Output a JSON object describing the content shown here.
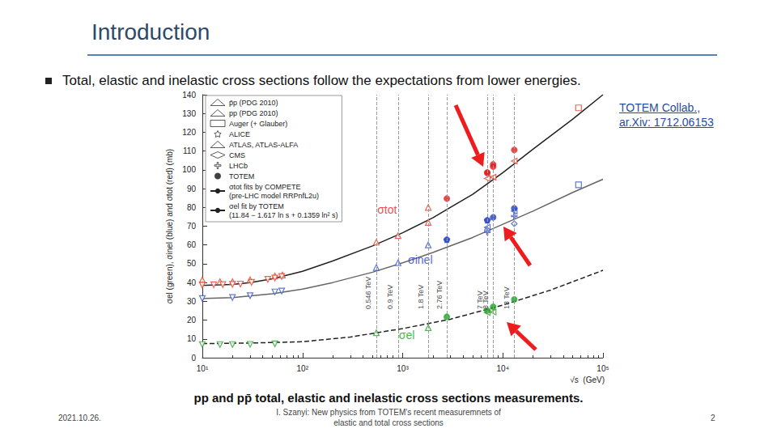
{
  "slide": {
    "title": "Introduction",
    "bullet": "Total, elastic and inelastic cross sections follow the expectations from lower energies.",
    "reference": [
      "TOTEM Collab.,",
      "ar.Xiv: 1712.06153"
    ],
    "footer": {
      "date": "2021.10.26.",
      "author": [
        "I. Szanyi: New physics from TOTEM's recent measuremnets of",
        "elastic and total cross sections"
      ],
      "page": "2"
    }
  },
  "chart_data": {
    "type": "scatter",
    "title": "pp and pp̄ total, elastic and inelastic cross sections measurements.",
    "xlabel": "√s  (GeV)",
    "ylabel": "σel (green), σinel (blue) and σtot (red) (mb)",
    "log": "x",
    "grid": false,
    "legend": "upper left",
    "xlim": [
      10,
      100000
    ],
    "xticks": [
      {
        "value": 10,
        "label": "10¹"
      },
      {
        "value": 100,
        "label": "10²"
      },
      {
        "value": 1000,
        "label": "10³"
      },
      {
        "value": 10000,
        "label": "10⁴"
      },
      {
        "value": 100000,
        "label": "10⁵"
      }
    ],
    "ylim": [
      0,
      140
    ],
    "yticks": [
      0,
      10,
      20,
      30,
      40,
      50,
      60,
      70,
      80,
      90,
      100,
      110,
      120,
      130,
      140
    ],
    "series": [
      {
        "name": "p̄p (PDG 2010)",
        "color": "#e8412c",
        "marker": "triangle-up-open",
        "type": "scatter",
        "x": [
          10,
          15,
          20,
          30,
          53,
          63,
          546,
          900,
          1800,
          1800
        ],
        "values": [
          41.5,
          40.5,
          40.5,
          41.5,
          43.5,
          44,
          61.5,
          65,
          72,
          80
        ]
      },
      {
        "name": "p̄p (PDG 2010)",
        "color": "#3a56c9",
        "marker": "triangle-up-open",
        "type": "scatter",
        "x": [
          546,
          900,
          1800
        ],
        "values": [
          48,
          50.5,
          60
        ]
      },
      {
        "name": "p̄p (PDG 2010)",
        "color": "#2ca02c",
        "marker": "triangle-up-open",
        "type": "scatter",
        "x": [
          546,
          1800
        ],
        "values": [
          13.3,
          16
        ]
      },
      {
        "name": "pp (PDG 2010)",
        "color": "#e8412c",
        "marker": "triangle-down-open",
        "type": "scatter",
        "x": [
          10,
          13,
          16,
          20,
          24,
          31,
          45,
          53,
          62
        ],
        "values": [
          38.6,
          38.8,
          38.9,
          39,
          39.2,
          40.1,
          41.7,
          42.4,
          43.2
        ]
      },
      {
        "name": "pp (PDG 2010)",
        "color": "#3a56c9",
        "marker": "triangle-down-open",
        "type": "scatter",
        "x": [
          10,
          20,
          30,
          53,
          62
        ],
        "values": [
          31.5,
          32,
          33,
          35,
          35.5
        ]
      },
      {
        "name": "pp (PDG 2010)",
        "color": "#2ca02c",
        "marker": "triangle-down-open",
        "type": "scatter",
        "x": [
          10,
          15,
          20,
          30,
          53
        ],
        "values": [
          7,
          7,
          7,
          7.1,
          7.4
        ]
      },
      {
        "name": "Auger (+ Glauber)",
        "color": "#e8412c",
        "marker": "square-open",
        "type": "scatter",
        "x": [
          57000
        ],
        "values": [
          133
        ]
      },
      {
        "name": "Auger (+ Glauber)",
        "color": "#3a56c9",
        "marker": "square-open",
        "type": "scatter",
        "x": [
          57000
        ],
        "values": [
          92
        ]
      },
      {
        "name": "ALICE",
        "color": "#3a56c9",
        "marker": "star-open",
        "type": "scatter",
        "x": [
          2760,
          7000
        ],
        "values": [
          62.8,
          73.2
        ]
      },
      {
        "name": "ATLAS, ATLAS-ALFA",
        "color": "#e8412c",
        "marker": "triangle-left-open",
        "type": "scatter",
        "x": [
          7000,
          8000,
          13000
        ],
        "values": [
          95.4,
          96.1,
          104.7
        ]
      },
      {
        "name": "ATLAS, ATLAS-ALFA",
        "color": "#3a56c9",
        "marker": "triangle-left-open",
        "type": "scatter",
        "x": [
          7000,
          13000
        ],
        "values": [
          69.4,
          78.1
        ]
      },
      {
        "name": "ATLAS, ATLAS-ALFA",
        "color": "#2ca02c",
        "marker": "triangle-left-open",
        "type": "scatter",
        "x": [
          7000,
          8000
        ],
        "values": [
          24,
          24.3
        ]
      },
      {
        "name": "CMS",
        "color": "#3a56c9",
        "marker": "diamond-open",
        "type": "scatter",
        "x": [
          7000,
          13000
        ],
        "values": [
          68,
          71.3
        ]
      },
      {
        "name": "LHCb",
        "color": "#3a56c9",
        "marker": "cross-open",
        "type": "scatter",
        "x": [
          7000,
          13000
        ],
        "values": [
          66.9,
          75.4
        ]
      },
      {
        "name": "TOTEM",
        "color": "#e31a1c",
        "marker": "circle",
        "type": "scatter",
        "x": [
          2760,
          7000,
          7000,
          8000,
          8000,
          13000
        ],
        "values": [
          84.7,
          98.3,
          98.6,
          101.7,
          102.9,
          110.6
        ]
      },
      {
        "name": "TOTEM",
        "color": "#1f3fc4",
        "marker": "circle",
        "type": "scatter",
        "x": [
          2760,
          7000,
          8000,
          13000
        ],
        "values": [
          62.8,
          73.1,
          74.7,
          79.5
        ]
      },
      {
        "name": "TOTEM",
        "color": "#16a31b",
        "marker": "circle",
        "type": "scatter",
        "x": [
          2760,
          7000,
          8000,
          13000
        ],
        "values": [
          21.8,
          25.1,
          27.1,
          31
        ]
      },
      {
        "name": "σtot fits by COMPETE\n(pre-LHC model RRPnfL2u)",
        "color": "#222222",
        "type": "line",
        "line_style": "solid",
        "x": [
          10,
          20,
          30,
          50,
          100,
          200,
          500,
          1000,
          2000,
          5000,
          10000,
          20000,
          50000,
          100000
        ],
        "values": [
          38.5,
          39,
          40,
          42,
          46,
          51.5,
          59.5,
          66.5,
          74.5,
          87,
          98.5,
          111,
          127,
          140
        ]
      },
      {
        "name": "σtot fits by COMPETE\n(pre-LHC model RRPnfL2u)",
        "color": "#666666",
        "type": "line",
        "line_style": "solid",
        "x": [
          10,
          20,
          50,
          100,
          200,
          500,
          1000,
          2000,
          5000,
          10000,
          20000,
          50000,
          100000
        ],
        "values": [
          31.5,
          32,
          34,
          36.5,
          40,
          45.5,
          50.5,
          56,
          64,
          71,
          78,
          88,
          95
        ]
      },
      {
        "name": "σel fit by TOTEM\n(11.84 − 1.617 ln s + 0.1359 ln² s)",
        "color": "#222222",
        "type": "line",
        "line_style": "dashed",
        "x": [
          10,
          30,
          100,
          300,
          1000,
          3000,
          10000,
          30000,
          100000
        ],
        "values": [
          7.5,
          7.8,
          8.5,
          11,
          15.5,
          20.5,
          28,
          36,
          46.5
        ]
      }
    ],
    "energy_marks": [
      {
        "value": 546,
        "label": "0.546 TeV"
      },
      {
        "value": 900,
        "label": "0.9 TeV"
      },
      {
        "value": 1800,
        "label": "1.8 TeV"
      },
      {
        "value": 2760,
        "label": "2.76 TeV"
      },
      {
        "value": 7000,
        "label": "7 TeV"
      },
      {
        "value": 8000,
        "label": "8 TeV"
      },
      {
        "value": 13000,
        "label": "13 TeV"
      }
    ],
    "annotations": [
      {
        "text": "σtot",
        "x": 700,
        "y": 79,
        "color": "#e31a1c"
      },
      {
        "text": "σinel",
        "x": 1500,
        "y": 52,
        "color": "#1f3fc4"
      },
      {
        "text": "σel",
        "x": 1100,
        "y": 12,
        "color": "#16a31b"
      }
    ]
  }
}
